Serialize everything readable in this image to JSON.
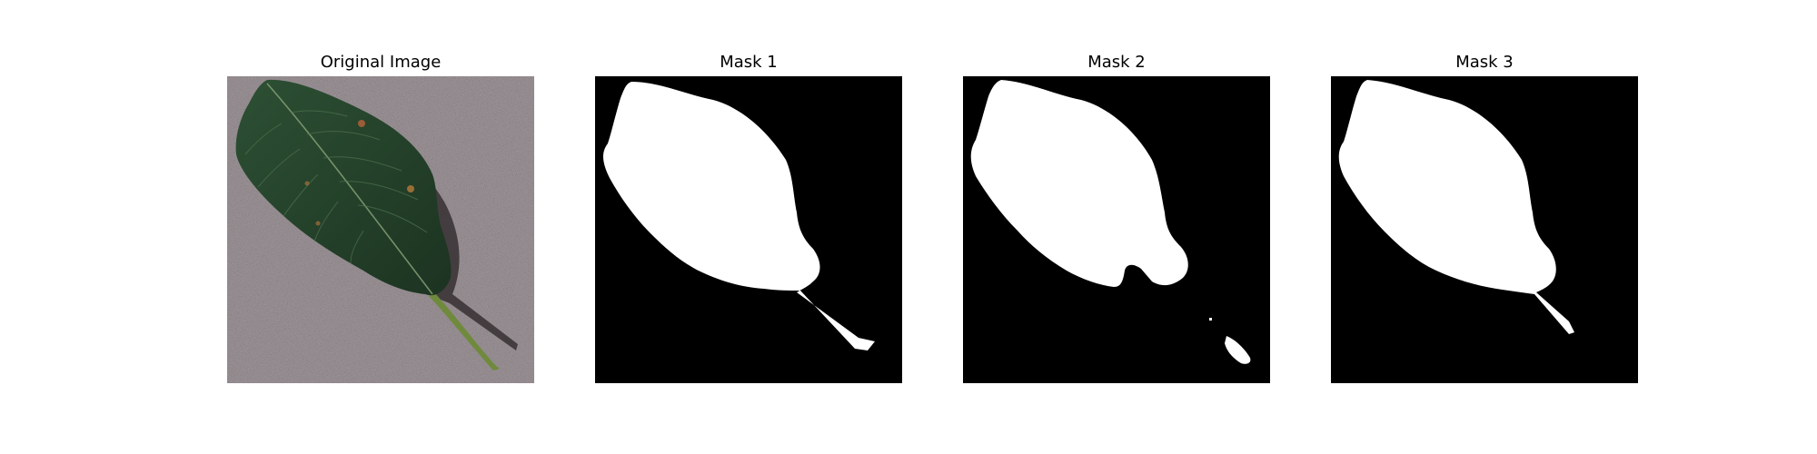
{
  "figure": {
    "panels": [
      {
        "title": "Original Image",
        "kind": "photo"
      },
      {
        "title": "Mask 1",
        "kind": "mask"
      },
      {
        "title": "Mask 2",
        "kind": "mask"
      },
      {
        "title": "Mask 3",
        "kind": "mask"
      }
    ],
    "colors": {
      "background": "#ffffff",
      "photo_surface": "#9a8f92",
      "leaf_dark": "#1f3a25",
      "leaf_mid": "#2d5034",
      "stem": "#6f8a3c",
      "mask_background": "#000000",
      "mask_foreground": "#ffffff"
    }
  }
}
